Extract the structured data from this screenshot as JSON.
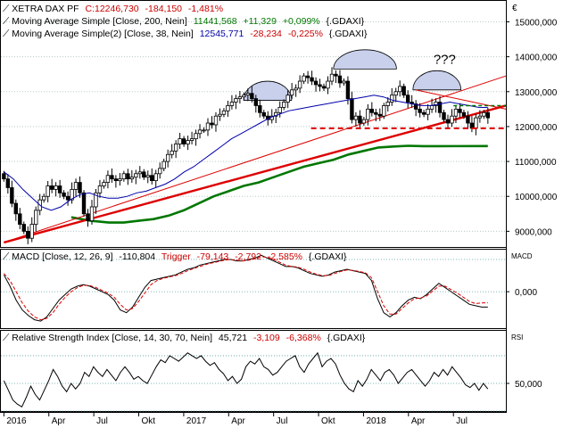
{
  "header": {
    "panel_symbol": "€",
    "legend": [
      {
        "label": "XETRA DAX PF",
        "value": "C:12246,730",
        "change": "-184,150",
        "pct": "-1,481%",
        "color": "#000000",
        "vcolor": "#cc0000"
      },
      {
        "label": "Moving Average Simple [Close, 200, Nein]",
        "value": "11441,568",
        "change": "+11,329",
        "pct": "+0,099%",
        "tail": "{.GDAXI}",
        "color": "#007700",
        "vcolor": "#007700"
      },
      {
        "label": "Moving Average Simple(2) [Close, 38, Nein]",
        "value": "12545,771",
        "change": "-28,234",
        "pct": "-0,225%",
        "tail": "{.GDAXI}",
        "color": "#0000aa",
        "vcolor": "#cc0000"
      }
    ],
    "macd_legend": {
      "label": "MACD [Close, 12, 26, 9]",
      "value": "-110,804",
      "trigger": "Trigger",
      "tvalue": "-79,143",
      "change": "-2,792",
      "pct": "-2,585%",
      "tail": "{.GDAXI}"
    },
    "rsi_legend": {
      "label": "Relative Strength Index [Close, 14, 30, 70, Nein]",
      "value": "45,721",
      "change": "-3,109",
      "pct": "-6,368%",
      "tail": "{.GDAXI}"
    },
    "macd_tag": "MACD",
    "rsi_tag": "RSI",
    "question_mark": "???"
  },
  "colors": {
    "up": "#ffffff",
    "down": "#000000",
    "ma200": "#007700",
    "ma38": "#0000aa",
    "trend": "#dd0000",
    "macd": "#000000",
    "trigger": "#dd0000",
    "grid": "#b8c8c8",
    "dome": "#c8d0ec"
  },
  "chart_data": [
    {
      "type": "candlestick",
      "y_ticks": [
        "15000,000",
        "14000,000",
        "13000,000",
        "12000,000",
        "11000,000",
        "10000,000",
        "9000,000"
      ],
      "y_tick_values": [
        15000,
        14000,
        13000,
        12000,
        11000,
        10000,
        9000
      ],
      "ylim": [
        8550,
        15600
      ],
      "x_ticks": [
        "2016",
        "Apr",
        "Jul",
        "Okt",
        "2017",
        "Apr",
        "Jul",
        "Okt",
        "2018",
        "Apr",
        "Jul"
      ],
      "x_tick_months": [
        0,
        3,
        6,
        9,
        12,
        15,
        18,
        21,
        24,
        27,
        30
      ],
      "xlim_months": [
        -0.2,
        33.5
      ],
      "closes": [
        10500,
        10250,
        9800,
        9500,
        9200,
        9000,
        8800,
        9200,
        9600,
        9900,
        10000,
        10300,
        10200,
        10300,
        10100,
        10000,
        9900,
        10200,
        10400,
        10100,
        9500,
        9300,
        9700,
        10100,
        10300,
        10400,
        10600,
        10500,
        10450,
        10500,
        10650,
        10500,
        10550,
        10650,
        10700,
        10550,
        10600,
        10450,
        10650,
        10800,
        11000,
        11200,
        11300,
        11500,
        11650,
        11500,
        11600,
        11650,
        11800,
        11900,
        11900,
        12100,
        12050,
        12300,
        12350,
        12450,
        12600,
        12700,
        12800,
        12850,
        12900,
        12950,
        12800,
        12600,
        12400,
        12300,
        12200,
        12300,
        12400,
        12550,
        12700,
        12900,
        13050,
        13100,
        13300,
        13450,
        13400,
        13300,
        13200,
        13150,
        13100,
        13300,
        13500,
        13450,
        13250,
        13300,
        12800,
        12200,
        12300,
        12100,
        12200,
        12500,
        12400,
        12350,
        12300,
        12600,
        12700,
        12900,
        13000,
        13150,
        12900,
        12700,
        12650,
        12500,
        12400,
        12350,
        12500,
        12600,
        12700,
        12400,
        12200,
        12100,
        12300,
        12500,
        12400,
        12300,
        12100,
        11950,
        12250,
        12300,
        12400,
        12250
      ],
      "ma200": [
        9400,
        9300,
        9250,
        9250,
        9300,
        9350,
        9450,
        9600,
        9800,
        10000,
        10150,
        10300,
        10400,
        10550,
        10700,
        10850,
        10950,
        11050,
        11200,
        11300,
        11400,
        11430,
        11450,
        11440,
        11440,
        11442
      ],
      "ma200_x": [
        4.5,
        5.8,
        7,
        8,
        9,
        10,
        11,
        12,
        13,
        14,
        15,
        16,
        17,
        18,
        19,
        20,
        21,
        22,
        23,
        24,
        25,
        26,
        27,
        28,
        29,
        32.3
      ],
      "ma38": [
        10700,
        10500,
        10200,
        9950,
        9700,
        9600,
        9700,
        9900,
        10050,
        10100,
        10000,
        9950,
        9950,
        10000,
        10100,
        10150,
        10250,
        10350,
        10500,
        10700,
        10850,
        11050,
        11250,
        11450,
        11650,
        11800,
        11950,
        12100,
        12250,
        12350,
        12450,
        12500,
        12550,
        12600,
        12650,
        12700,
        12750,
        12800,
        12850,
        12900,
        12850,
        12750,
        12700,
        12650,
        12600,
        12600,
        12650,
        12700,
        12650,
        12600,
        12550,
        12546
      ],
      "trend_lines": [
        {
          "x": [
            0,
            33.5
          ],
          "y": [
            8680,
            12600
          ],
          "width": 2.4
        },
        {
          "x": [
            0,
            33.5
          ],
          "y": [
            8680,
            13450
          ],
          "width": 1
        }
      ],
      "support_line": {
        "x": [
          20.5,
          33.5
        ],
        "y": [
          11950,
          11950
        ]
      },
      "neckline": {
        "x": [
          27.5,
          33.5
        ],
        "y": [
          13050,
          12500
        ]
      },
      "shoulder_line": {
        "x": [
          30,
          33.5
        ],
        "y": [
          12600,
          12600
        ]
      },
      "domes": [
        {
          "x": [
            16,
            19.2
          ],
          "top": 13300
        },
        {
          "x": [
            22,
            26.2
          ],
          "top": 14200
        },
        {
          "x": [
            27.3,
            30.5
          ],
          "top": 13600
        }
      ],
      "question_at": [
        29.5,
        13800
      ]
    },
    {
      "type": "line",
      "y_ticks": [
        "0,000"
      ],
      "y_tick_values": [
        0
      ],
      "ylim": [
        -260,
        300
      ],
      "guide_values": [
        0,
        230
      ],
      "series": [
        {
          "name": "MACD",
          "values": [
            120,
            40,
            -60,
            -130,
            -170,
            -200,
            -210,
            -180,
            -120,
            -60,
            -20,
            20,
            40,
            50,
            40,
            20,
            0,
            -20,
            -60,
            -130,
            -150,
            -110,
            -40,
            30,
            80,
            90,
            100,
            110,
            120,
            140,
            160,
            170,
            190,
            200,
            210,
            220,
            230,
            230,
            220,
            220,
            230,
            240,
            260,
            240,
            220,
            200,
            180,
            180,
            170,
            150,
            130,
            120,
            110,
            120,
            140,
            150,
            160,
            150,
            140,
            130,
            80,
            -50,
            -150,
            -180,
            -150,
            -100,
            -60,
            -40,
            -50,
            -20,
            20,
            60,
            30,
            0,
            -30,
            -60,
            -90,
            -100,
            -110,
            -110
          ]
        },
        {
          "name": "Trigger",
          "values": [
            130,
            80,
            0,
            -80,
            -140,
            -180,
            -200,
            -190,
            -150,
            -90,
            -40,
            0,
            30,
            45,
            45,
            30,
            10,
            -10,
            -40,
            -90,
            -130,
            -120,
            -70,
            -10,
            50,
            80,
            95,
            105,
            115,
            130,
            150,
            165,
            180,
            195,
            205,
            215,
            225,
            230,
            225,
            220,
            225,
            235,
            250,
            245,
            230,
            210,
            190,
            180,
            175,
            160,
            140,
            125,
            115,
            115,
            130,
            145,
            155,
            152,
            145,
            135,
            100,
            0,
            -100,
            -160,
            -160,
            -120,
            -80,
            -50,
            -45,
            -30,
            5,
            40,
            40,
            15,
            -10,
            -40,
            -70,
            -85,
            -80,
            -79
          ]
        }
      ]
    },
    {
      "type": "line",
      "y_ticks": [
        "50,000"
      ],
      "y_tick_values": [
        50
      ],
      "ylim": [
        30,
        88
      ],
      "guide_values": [
        70,
        50,
        30
      ],
      "series": [
        {
          "name": "Relative Strength Index",
          "values": [
            52,
            45,
            38,
            35,
            33,
            40,
            48,
            42,
            38,
            45,
            52,
            60,
            55,
            48,
            44,
            50,
            46,
            50,
            58,
            55,
            62,
            58,
            55,
            60,
            56,
            52,
            58,
            62,
            58,
            53,
            55,
            52,
            50,
            56,
            62,
            67,
            65,
            70,
            68,
            66,
            69,
            72,
            70,
            68,
            70,
            66,
            63,
            65,
            60,
            57,
            52,
            55,
            50,
            53,
            62,
            66,
            64,
            68,
            62,
            60,
            56,
            58,
            62,
            66,
            68,
            70,
            62,
            58,
            64,
            68,
            72,
            62,
            66,
            68,
            64,
            56,
            50,
            46,
            44,
            52,
            48,
            53,
            60,
            56,
            52,
            58,
            60,
            56,
            50,
            54,
            58,
            60,
            56,
            52,
            48,
            52,
            58,
            55,
            60,
            56,
            62,
            58,
            54,
            49,
            47,
            50,
            45,
            50,
            46
          ]
        }
      ]
    }
  ]
}
